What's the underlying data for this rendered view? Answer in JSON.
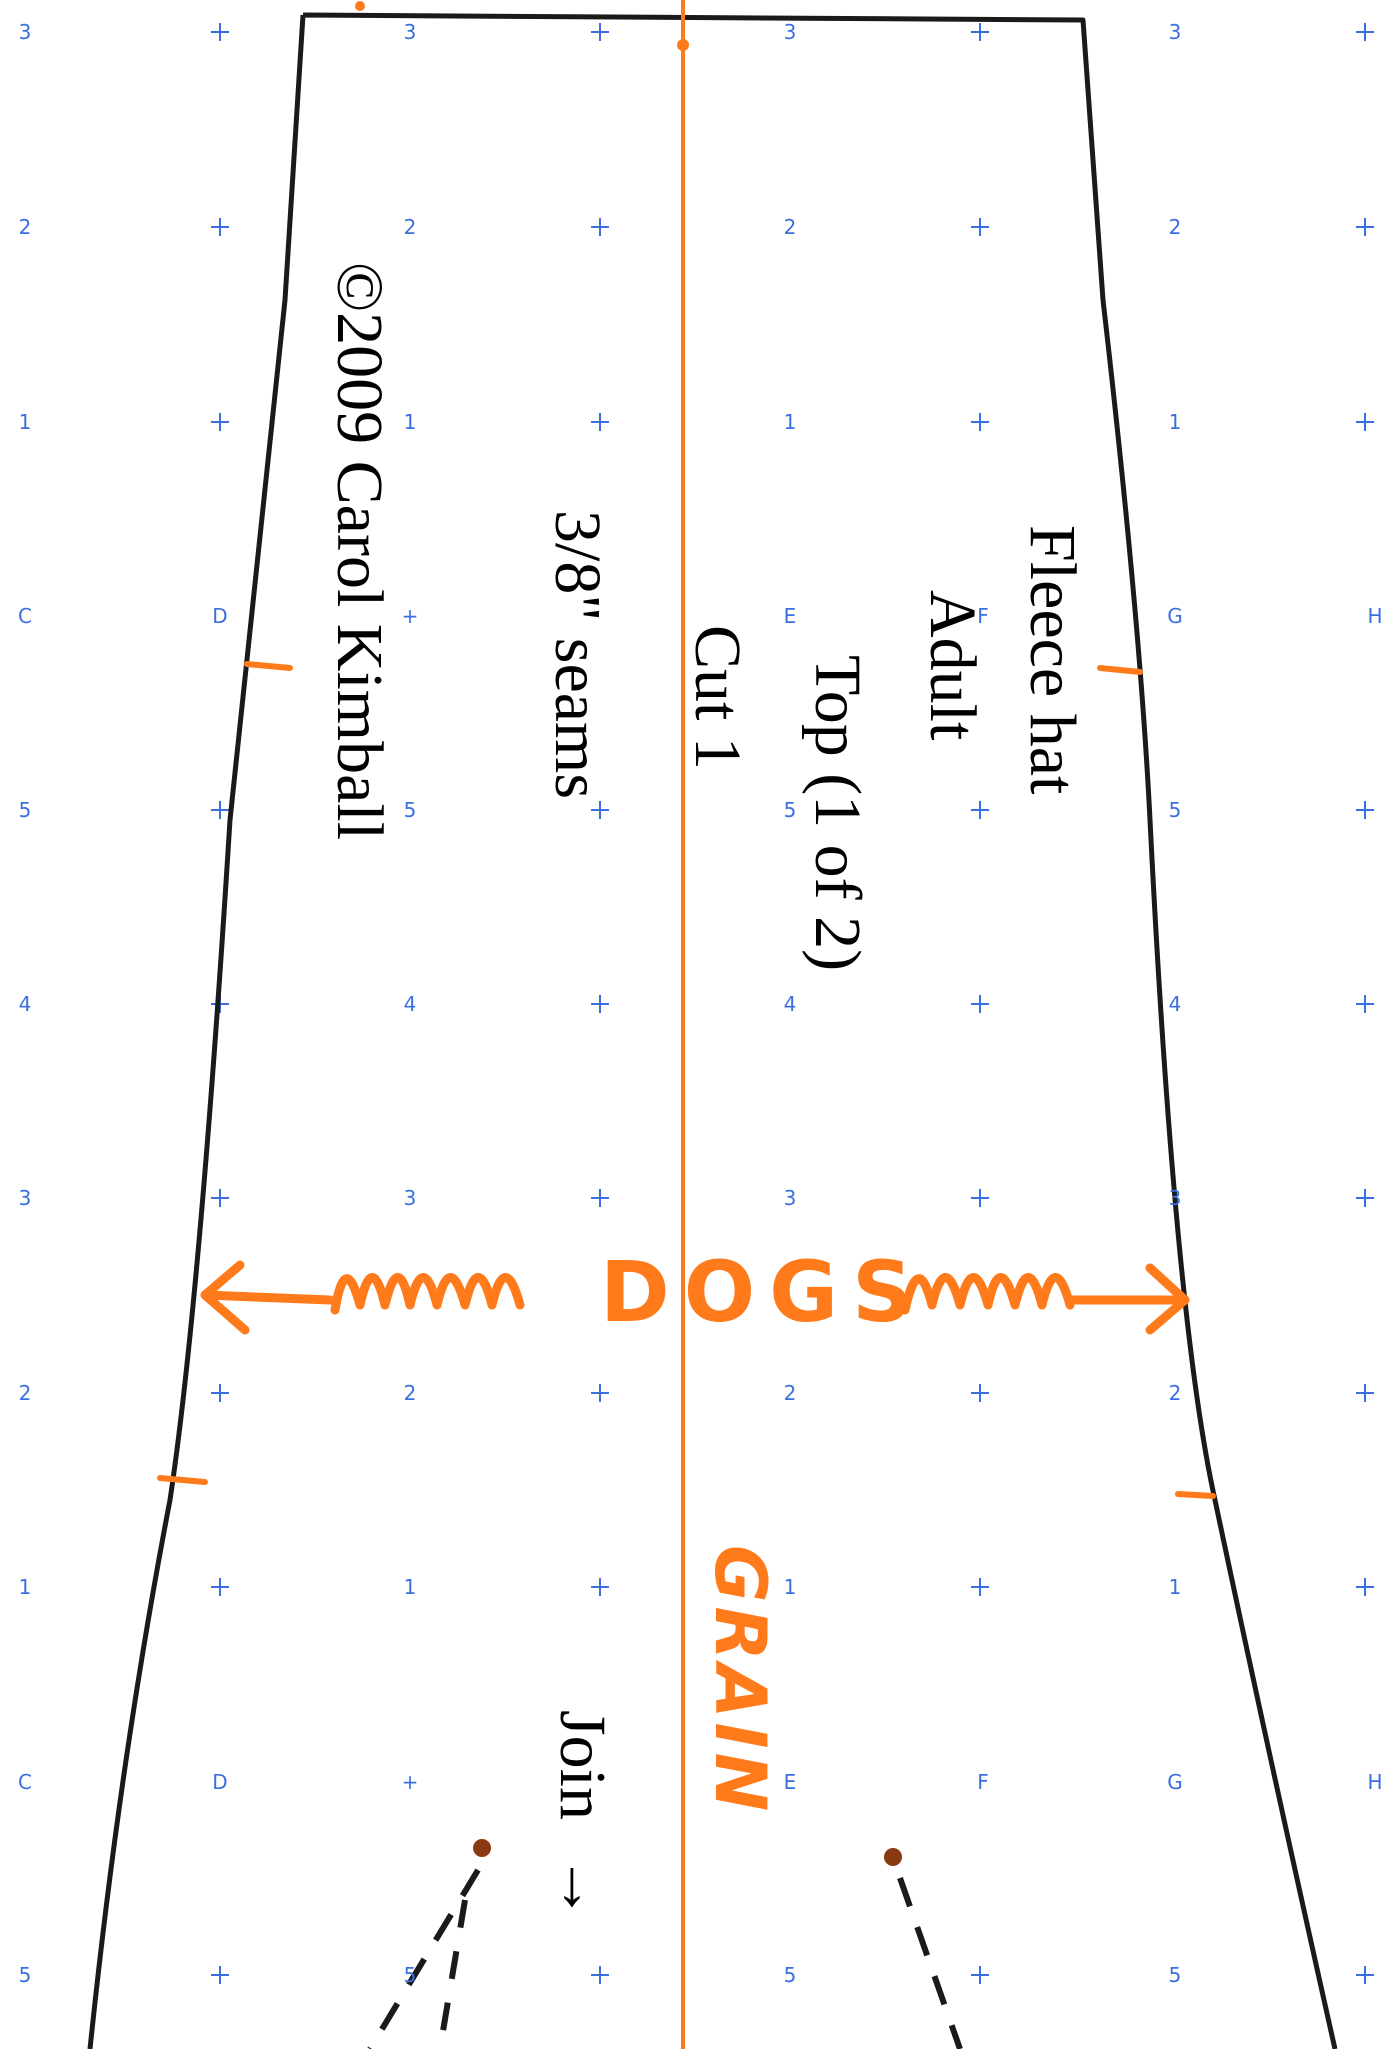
{
  "pattern": {
    "title": "Fleece hat",
    "size": "Adult",
    "piece": "Top (1 of 2)",
    "cut": "Cut 1",
    "seams": "3/8\" seams",
    "copyright": "©2009 Carol Kimball",
    "join": "Join",
    "join_arrow": "→",
    "grain": "GRAIN",
    "stretch_label": "DOGS",
    "colors": {
      "outline": "#1a1a1a",
      "orange": "#ff7a1a",
      "grid": "#3b6fe0",
      "dot": "#8a3a10"
    }
  },
  "grid": {
    "columns": [
      "C",
      "D",
      "+",
      "E",
      "F",
      "G",
      "H"
    ],
    "row_sequence": [
      "3",
      "2",
      "1",
      "C",
      "5",
      "4",
      "3",
      "2",
      "1",
      "C",
      "5"
    ]
  }
}
